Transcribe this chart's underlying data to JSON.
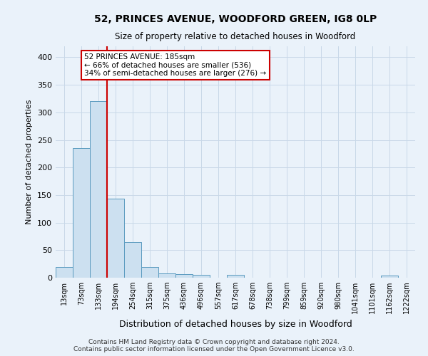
{
  "title": "52, PRINCES AVENUE, WOODFORD GREEN, IG8 0LP",
  "subtitle": "Size of property relative to detached houses in Woodford",
  "xlabel": "Distribution of detached houses by size in Woodford",
  "ylabel": "Number of detached properties",
  "footer_line1": "Contains HM Land Registry data © Crown copyright and database right 2024.",
  "footer_line2": "Contains public sector information licensed under the Open Government Licence v3.0.",
  "bar_labels": [
    "13sqm",
    "73sqm",
    "133sqm",
    "194sqm",
    "254sqm",
    "315sqm",
    "375sqm",
    "436sqm",
    "496sqm",
    "557sqm",
    "617sqm",
    "678sqm",
    "738sqm",
    "799sqm",
    "859sqm",
    "920sqm",
    "980sqm",
    "1041sqm",
    "1101sqm",
    "1162sqm",
    "1222sqm"
  ],
  "bar_values": [
    20,
    235,
    320,
    144,
    64,
    20,
    8,
    6,
    5,
    0,
    5,
    0,
    0,
    0,
    0,
    0,
    0,
    0,
    0,
    4,
    0
  ],
  "bar_color": "#cce0f0",
  "bar_edge_color": "#5a9abf",
  "grid_color": "#c8d8e8",
  "background_color": "#eaf2fa",
  "vline_x": 2.5,
  "vline_color": "#cc0000",
  "annotation_text": "52 PRINCES AVENUE: 185sqm\n← 66% of detached houses are smaller (536)\n34% of semi-detached houses are larger (276) →",
  "annotation_box_color": "#ffffff",
  "annotation_box_edge": "#cc0000",
  "ylim": [
    0,
    420
  ],
  "yticks": [
    0,
    50,
    100,
    150,
    200,
    250,
    300,
    350,
    400
  ],
  "figsize": [
    6.0,
    5.0
  ],
  "dpi": 100
}
